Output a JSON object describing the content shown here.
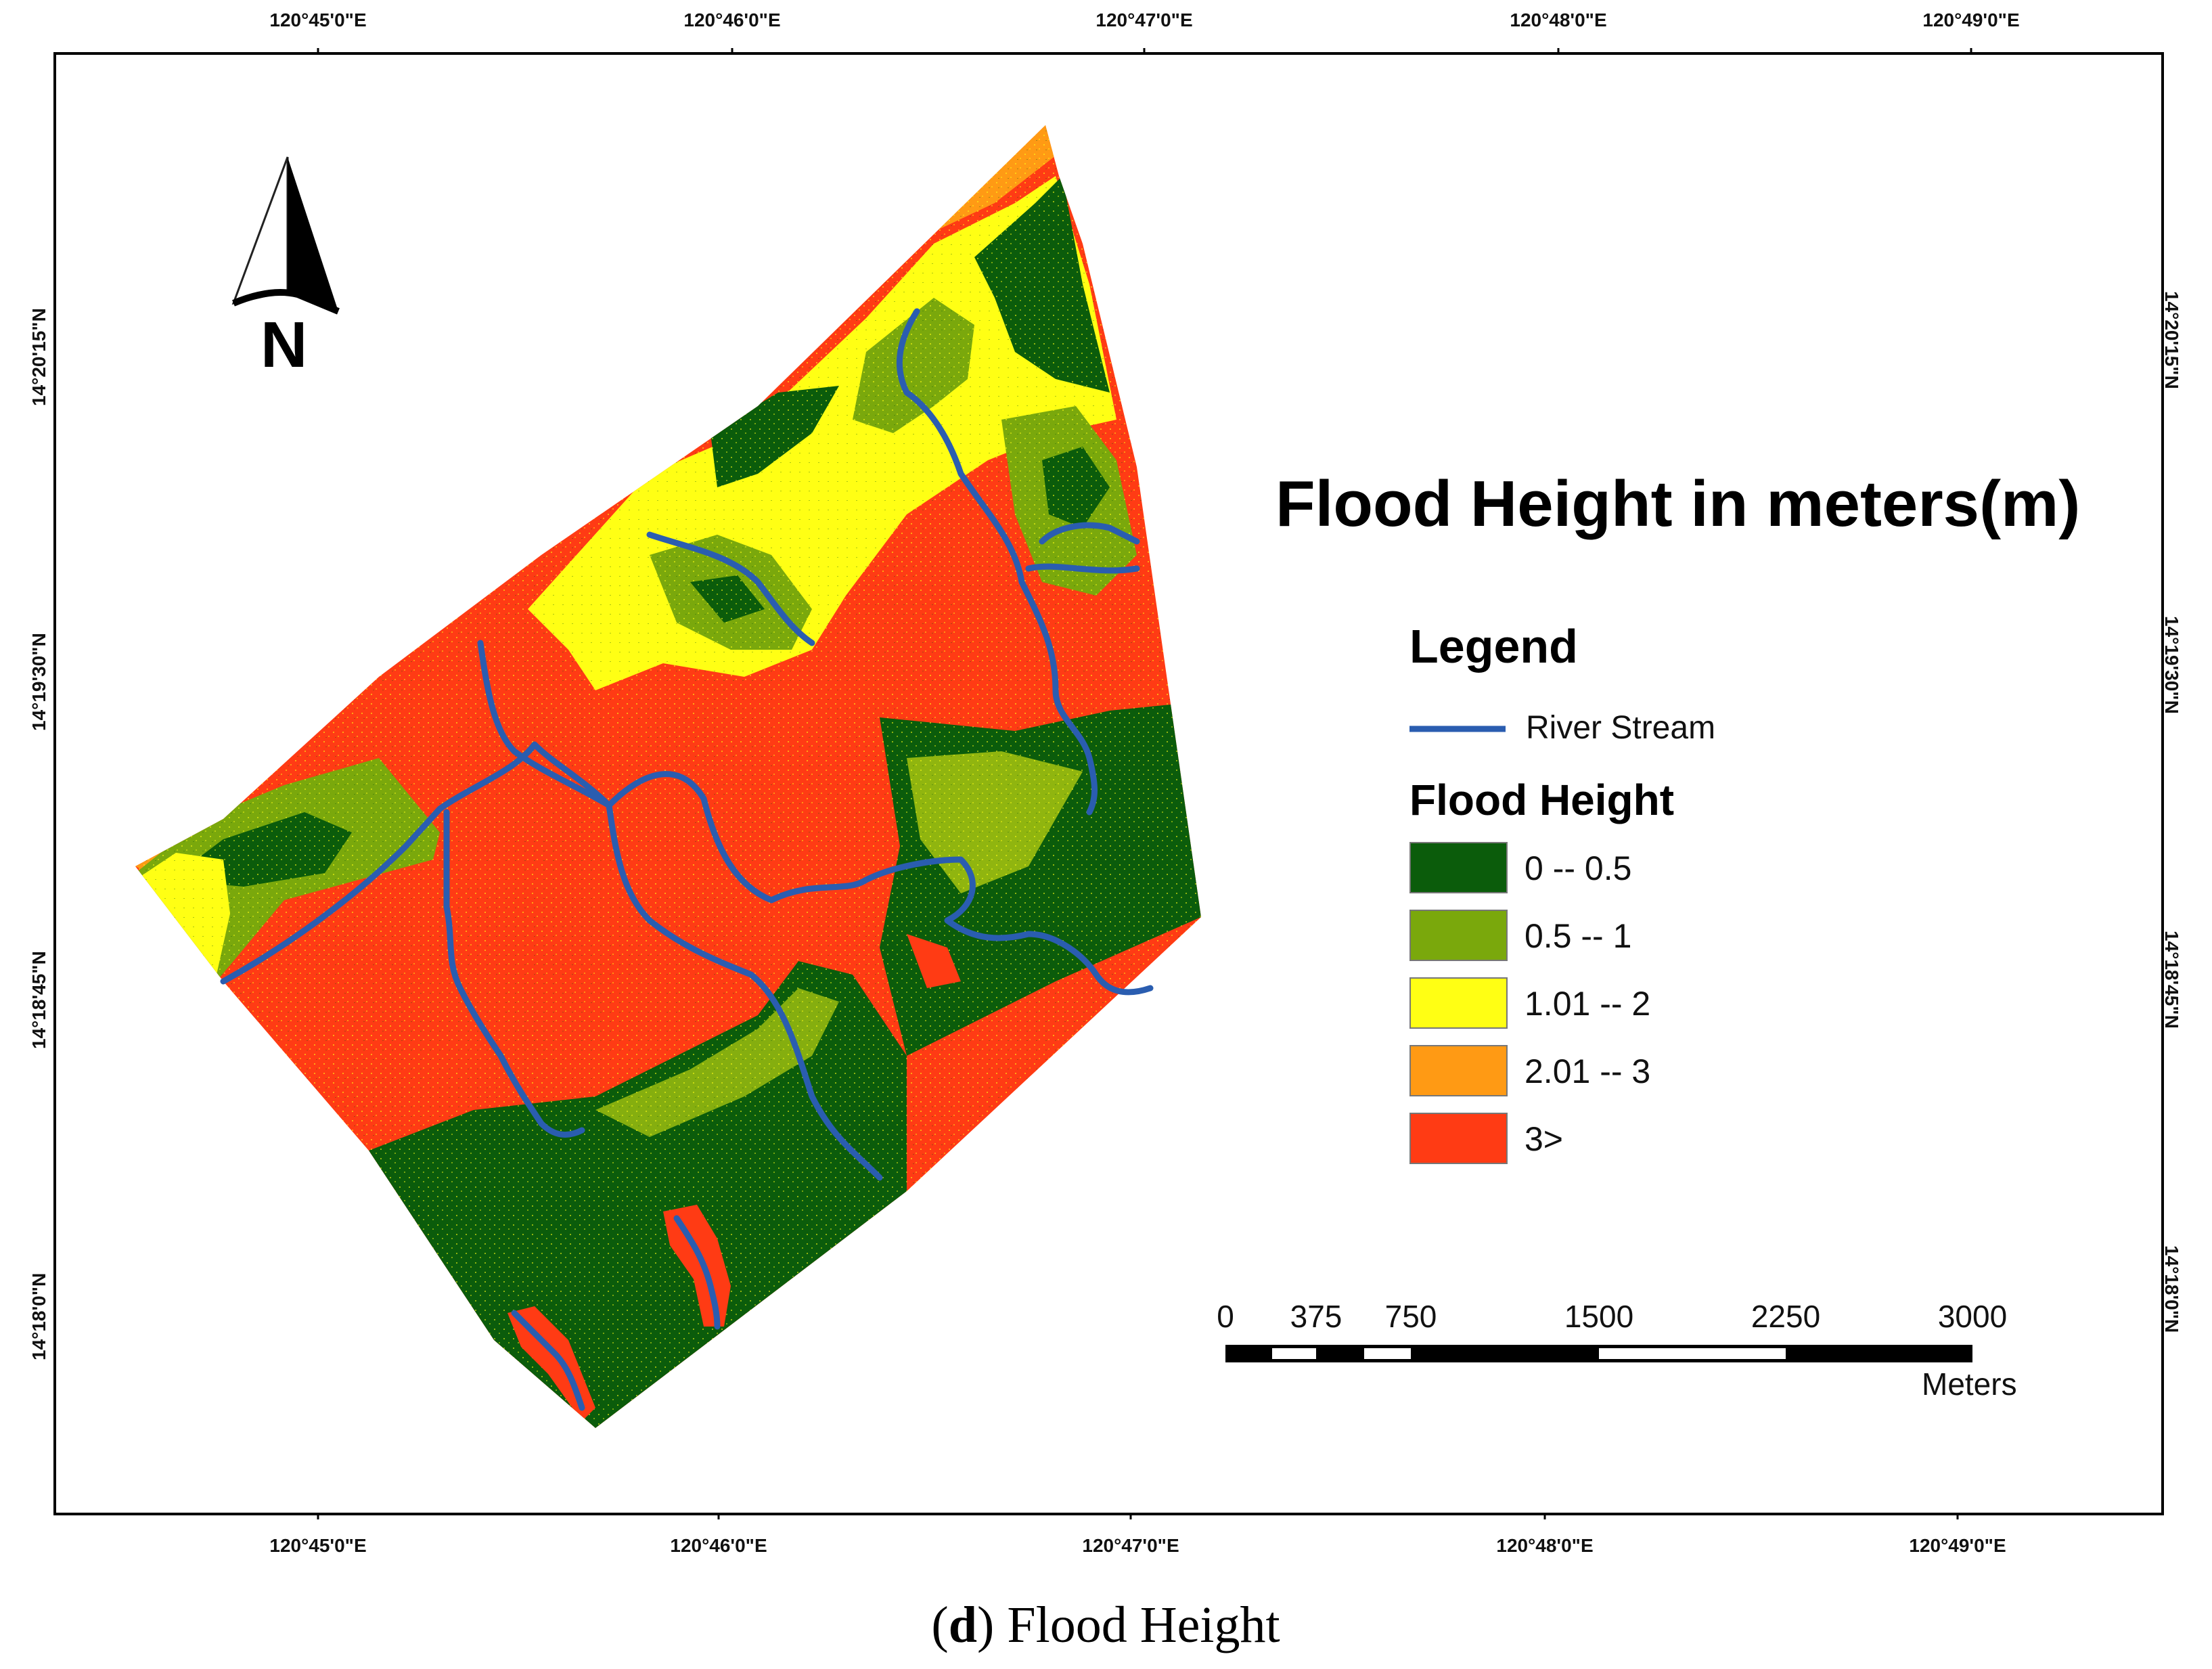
{
  "map": {
    "title": "Flood Height in meters(m)",
    "top_longitudes": [
      "120°45'0\"E",
      "120°46'0\"E",
      "120°47'0\"E",
      "120°48'0\"E",
      "120°49'0\"E"
    ],
    "bottom_longitudes": [
      "120°45'0\"E",
      "120°46'0\"E",
      "120°47'0\"E",
      "120°48'0\"E",
      "120°49'0\"E"
    ],
    "left_latitudes": [
      "14°20'15\"N",
      "14°19'30\"N",
      "14°18'45\"N",
      "14°18'0\"N"
    ],
    "right_latitudes": [
      "14°20'15\"N",
      "14°19'30\"N",
      "14°18'45\"N",
      "14°18'0\"N"
    ],
    "north_arrow_label": "N"
  },
  "legend": {
    "title": "Legend",
    "river_label": "River Stream",
    "river_color": "#2a5db0",
    "flood_title": "Flood Height",
    "classes": [
      {
        "label": "0 -- 0.5",
        "color": "#0b5c0b"
      },
      {
        "label": "0.5 -- 1",
        "color": "#7aa80c"
      },
      {
        "label": "1.01 -- 2",
        "color": "#ffff14"
      },
      {
        "label": "2.01 -- 3",
        "color": "#ff9a14"
      },
      {
        "label": "3>",
        "color": "#ff3b14"
      }
    ]
  },
  "scale_bar": {
    "labels": [
      "0",
      "375",
      "750",
      "1500",
      "2250",
      "3000"
    ],
    "unit": "Meters"
  },
  "caption": {
    "letter": "d",
    "text": "Flood Height"
  }
}
